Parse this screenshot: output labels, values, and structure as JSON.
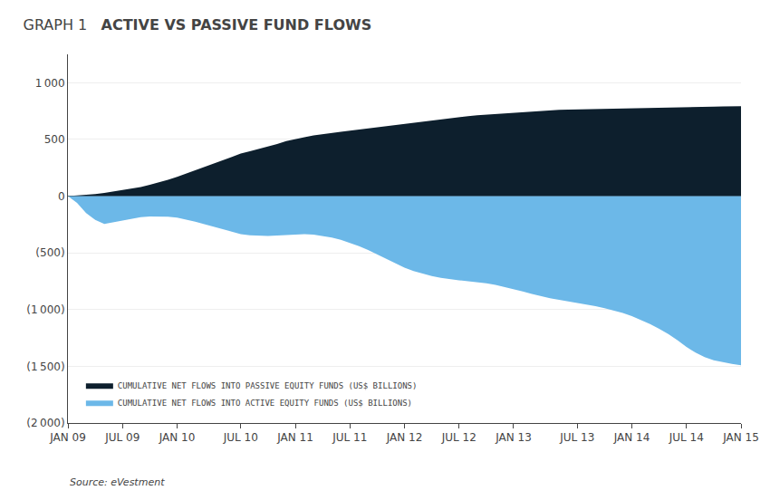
{
  "chart_data": {
    "type": "area",
    "title": "ACTIVE VS PASSIVE FUND FLOWS",
    "subtitle": "GRAPH 1",
    "annotations": [
      {
        "text": "Source: eVestment"
      }
    ],
    "categories": [
      "JAN 09",
      null,
      null,
      null,
      null,
      null,
      "JUL 09",
      null,
      null,
      null,
      null,
      null,
      "JAN 10",
      null,
      null,
      null,
      null,
      null,
      null,
      "JUL 10",
      null,
      null,
      null,
      null,
      null,
      "JAN 11",
      null,
      null,
      null,
      null,
      null,
      "JUL 11",
      null,
      null,
      null,
      null,
      null,
      "JAN 12",
      null,
      null,
      null,
      null,
      null,
      "JUL 12",
      null,
      null,
      null,
      null,
      null,
      "JAN 13",
      null,
      null,
      null,
      null,
      null,
      null,
      "JUL 13",
      null,
      null,
      null,
      null,
      null,
      "JAN 14",
      null,
      null,
      null,
      null,
      null,
      "JUL 14",
      null,
      null,
      null,
      null,
      null,
      "JAN 15"
    ],
    "series": [
      {
        "name": "CUMULATIVE NET FLOWS INTO PASSIVE EQUITY FUNDS (US$ BILLIONS)",
        "color": "#0d1f2d",
        "values": [
          0,
          5,
          10,
          18,
          28,
          40,
          52,
          65,
          80,
          100,
          120,
          145,
          170,
          200,
          230,
          260,
          290,
          320,
          350,
          375,
          395,
          415,
          435,
          460,
          485,
          505,
          520,
          535,
          548,
          558,
          568,
          578,
          588,
          598,
          608,
          618,
          628,
          638,
          648,
          658,
          668,
          678,
          688,
          698,
          705,
          712,
          718,
          724,
          730,
          736,
          742,
          748,
          752,
          756,
          760,
          762,
          764,
          766,
          768,
          770,
          772,
          774,
          776,
          778,
          780,
          782,
          784,
          785,
          786,
          787,
          788,
          789,
          790,
          791,
          793
        ]
      },
      {
        "name": "CUMULATIVE NET FLOWS INTO ACTIVE EQUITY FUNDS (US$ BILLIONS)",
        "color": "#6cb8e8",
        "values": [
          0,
          -60,
          -150,
          -210,
          -245,
          -230,
          -210,
          -195,
          -185,
          -180,
          -178,
          -182,
          -190,
          -205,
          -225,
          -248,
          -270,
          -295,
          -318,
          -335,
          -345,
          -350,
          -352,
          -348,
          -342,
          -338,
          -336,
          -340,
          -350,
          -365,
          -385,
          -410,
          -440,
          -475,
          -515,
          -555,
          -595,
          -630,
          -660,
          -685,
          -705,
          -720,
          -732,
          -742,
          -750,
          -758,
          -768,
          -782,
          -800,
          -820,
          -840,
          -862,
          -882,
          -900,
          -915,
          -928,
          -940,
          -955,
          -970,
          -988,
          -1008,
          -1030,
          -1058,
          -1090,
          -1128,
          -1170,
          -1215,
          -1270,
          -1330,
          -1380,
          -1420,
          -1448,
          -1465,
          -1478,
          -1490
        ]
      }
    ],
    "ylim": [
      -2000,
      1250
    ],
    "yticks": [
      {
        "value": -2000,
        "label": "(2 000)"
      },
      {
        "value": -1500,
        "label": "(1 500)"
      },
      {
        "value": -1000,
        "label": "(1 000)"
      },
      {
        "value": -500,
        "label": "(500)"
      },
      0,
      500,
      {
        "value": 1000,
        "label": "1 000"
      }
    ],
    "grid": true,
    "legend": "lower left"
  }
}
